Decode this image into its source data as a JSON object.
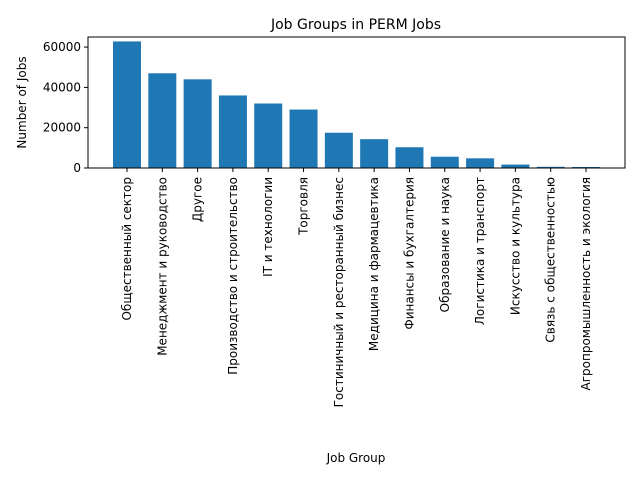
{
  "chart_data": {
    "type": "bar",
    "title": "Job Groups in PERM Jobs",
    "xlabel": "Job Group",
    "ylabel": "Number of Jobs",
    "ylim": [
      0,
      65000
    ],
    "yticks": [
      0,
      20000,
      40000,
      60000
    ],
    "ytick_labels": [
      "0",
      "20000",
      "40000",
      "60000"
    ],
    "grid": false,
    "bar_color": "#1f77b4",
    "categories": [
      "Общественный сектор",
      "Менеджмент и руководство",
      "Другое",
      "Производство и строительство",
      "IT и технологии",
      "Торговля",
      "Гостиничный и ресторанный бизнес",
      "Медицина и фармацевтика",
      "Финансы и бухгалтерия",
      "Образование и наука",
      "Логистика и транспорт",
      "Искусство и культура",
      "Связь с общественностью",
      "Агропромышленность и экология"
    ],
    "values": [
      62800,
      47000,
      44000,
      36000,
      32000,
      29000,
      17500,
      14300,
      10300,
      5600,
      4800,
      1700,
      600,
      500
    ]
  }
}
